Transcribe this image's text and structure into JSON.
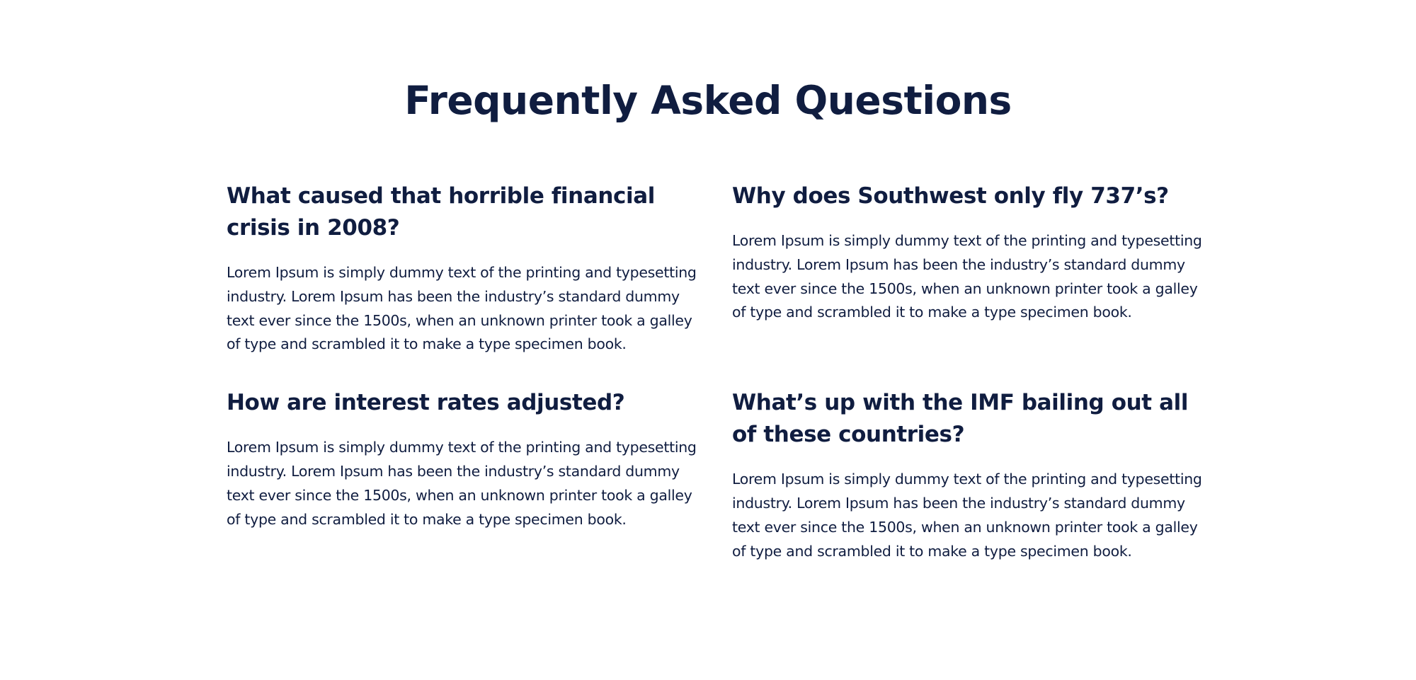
{
  "faq": {
    "title": "Frequently Asked Questions",
    "items": [
      {
        "question": "What caused that horrible financial crisis in 2008?",
        "answer": "Lorem Ipsum is simply dummy text of the printing and typesetting industry. Lorem Ipsum has been the industry’s standard dummy text ever since the 1500s, when an unknown printer took a galley of type and scrambled it to make a type specimen book."
      },
      {
        "question": "Why does Southwest only fly 737’s?",
        "answer": "Lorem Ipsum is simply dummy text of the printing and typesetting industry. Lorem Ipsum has been the industry’s standard dummy text ever since the 1500s, when an unknown printer took a galley of type and scrambled it to make a type specimen book."
      },
      {
        "question": "How are interest rates adjusted?",
        "answer": "Lorem Ipsum is simply dummy text of the printing and typesetting industry. Lorem Ipsum has been the industry’s standard dummy text ever since the 1500s, when an unknown printer took a galley of type and scrambled it to make a type specimen book."
      },
      {
        "question": "What’s up with the IMF bailing out all of these countries?",
        "answer": "Lorem Ipsum is simply dummy text of the printing and typesetting industry. Lorem Ipsum has been the industry’s standard dummy text ever since the 1500s, when an unknown printer took a galley of type and scrambled it to make a type specimen book."
      }
    ]
  },
  "colors": {
    "text": "#101d40",
    "background": "#ffffff"
  }
}
